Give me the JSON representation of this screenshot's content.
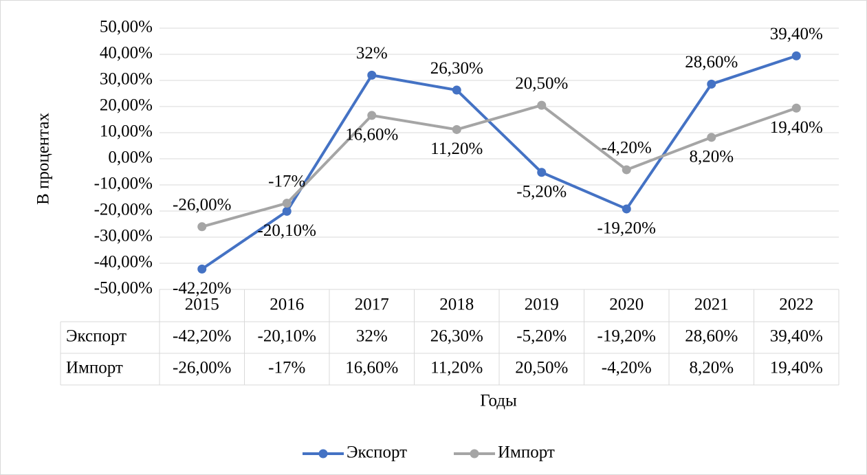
{
  "chart_data": {
    "type": "line",
    "y_label": "В процентах",
    "x_label": "Годы",
    "categories": [
      "2015",
      "2016",
      "2017",
      "2018",
      "2019",
      "2020",
      "2021",
      "2022"
    ],
    "series": [
      {
        "name": "Экспорт",
        "color": "#4472c4",
        "values": [
          -42.2,
          -20.1,
          32,
          26.3,
          -5.2,
          -19.2,
          28.6,
          39.4
        ],
        "value_labels": [
          "-42,20%",
          "-20,10%",
          "32%",
          "26,30%",
          "-5,20%",
          "-19,20%",
          "28,60%",
          "39,40%"
        ]
      },
      {
        "name": "Импорт",
        "color": "#a5a5a5",
        "values": [
          -26,
          -17,
          16.6,
          11.2,
          20.5,
          -4.2,
          8.2,
          19.4
        ],
        "value_labels": [
          "-26,00%",
          "-17%",
          "16,60%",
          "11,20%",
          "20,50%",
          "-4,20%",
          "8,20%",
          "19,40%"
        ]
      }
    ],
    "ylim": [
      -50,
      50
    ],
    "yticks": [
      {
        "value": -50,
        "label": "-50,00%"
      },
      {
        "value": -40,
        "label": "-40,00%"
      },
      {
        "value": -30,
        "label": "-30,00%"
      },
      {
        "value": -20,
        "label": "-20,00%"
      },
      {
        "value": -10,
        "label": "-10,00%"
      },
      {
        "value": 0,
        "label": "0,00%"
      },
      {
        "value": 10,
        "label": "10,00%"
      },
      {
        "value": 20,
        "label": "20,00%"
      },
      {
        "value": 30,
        "label": "30,00%"
      },
      {
        "value": 40,
        "label": "40,00%"
      },
      {
        "value": 50,
        "label": "50,00%"
      }
    ],
    "grid": true,
    "legend": "bottom",
    "data_table": true
  }
}
